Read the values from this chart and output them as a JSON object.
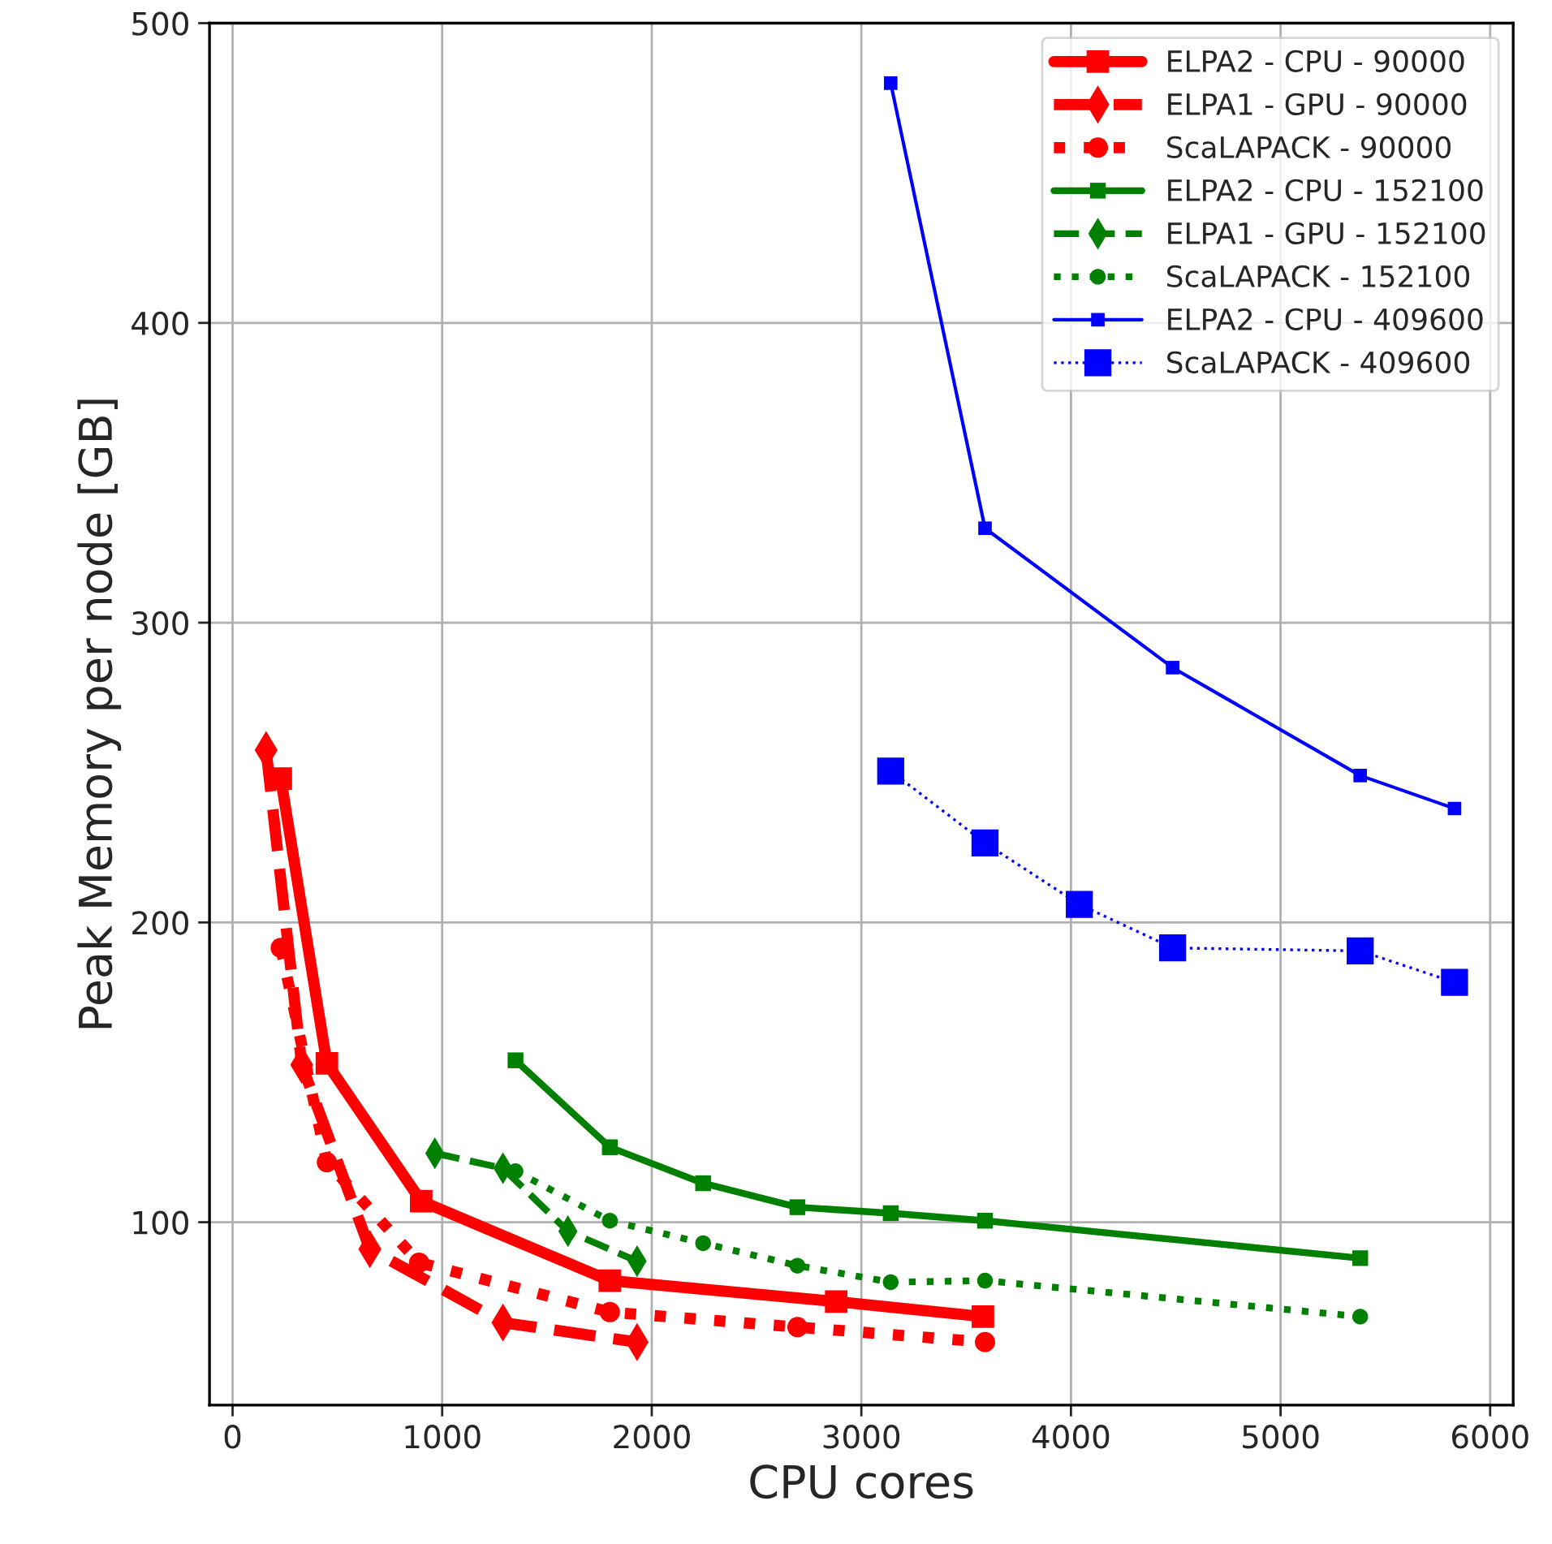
{
  "chart_data": {
    "type": "line",
    "xlabel": "CPU cores",
    "ylabel": "Peak Memory per node [GB]",
    "xlim": [
      -110,
      6110
    ],
    "ylim": [
      39,
      500
    ],
    "xticks": [
      0,
      1000,
      2000,
      3000,
      4000,
      5000,
      6000
    ],
    "yticks": [
      100,
      200,
      300,
      400,
      500
    ],
    "grid": true,
    "legend": "top right",
    "series": [
      {
        "name": "ELPA2 - CPU - 90000",
        "color": "#ff0000",
        "marker": "square",
        "line_style": "solid",
        "x": [
          230,
          450,
          900,
          1800,
          2880,
          3580
        ],
        "values": [
          248,
          153,
          107,
          80.5,
          73.5,
          68.5
        ]
      },
      {
        "name": "ELPA1 - GPU - 90000",
        "color": "#ff0000",
        "marker": "diamond",
        "line_style": "dashed",
        "x": [
          160,
          330,
          655,
          1290,
          1930
        ],
        "values": [
          257.5,
          152.5,
          91,
          66.5,
          60
        ]
      },
      {
        "name": "ScaLAPACK - 90000",
        "color": "#ff0000",
        "marker": "circle",
        "line_style": "dotted",
        "x": [
          230,
          450,
          890,
          1800,
          2695,
          3590
        ],
        "values": [
          191.5,
          120,
          86.5,
          70,
          65,
          60
        ]
      },
      {
        "name": "ELPA2 - CPU - 152100",
        "color": "#008000",
        "marker": "square",
        "line_style": "solid",
        "x": [
          1350,
          1800,
          2245,
          2695,
          3140,
          3590,
          5380
        ],
        "values": [
          154,
          125,
          113,
          105,
          103,
          100.5,
          88
        ]
      },
      {
        "name": "ELPA1 - GPU - 152100",
        "color": "#008000",
        "marker": "diamond",
        "line_style": "dashed",
        "x": [
          965,
          1290,
          1600,
          1930
        ],
        "values": [
          123,
          118,
          97,
          87
        ]
      },
      {
        "name": "ScaLAPACK - 152100",
        "color": "#008000",
        "marker": "circle",
        "line_style": "dotted",
        "x": [
          1350,
          1800,
          2245,
          2695,
          3140,
          3590,
          5380
        ],
        "values": [
          117,
          100.5,
          93,
          85.5,
          80,
          80.5,
          68.5
        ]
      },
      {
        "name": "ELPA2 - CPU - 409600",
        "color": "#0000ff",
        "marker": "square",
        "line_style": "solid",
        "x": [
          3140,
          3590,
          4485,
          5380,
          5830
        ],
        "values": [
          480,
          331.5,
          285,
          249,
          238
        ]
      },
      {
        "name": "ScaLAPACK - 409600",
        "color": "#0000ff",
        "marker": "square",
        "line_style": "dotted",
        "x": [
          3140,
          3590,
          4040,
          4485,
          5380,
          5830
        ],
        "values": [
          250.5,
          226.5,
          206,
          191.5,
          190.5,
          180
        ]
      }
    ]
  }
}
